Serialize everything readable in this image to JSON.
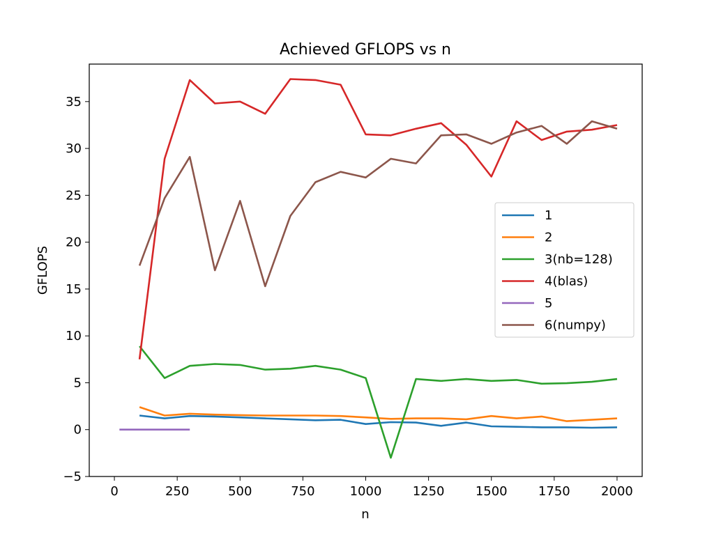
{
  "chart_data": {
    "type": "line",
    "title": "Achieved GFLOPS vs n",
    "xlabel": "n",
    "ylabel": "GFLOPS",
    "xlim": [
      -100,
      2100
    ],
    "ylim": [
      -5,
      39
    ],
    "xticks": [
      0,
      250,
      500,
      750,
      1000,
      1250,
      1500,
      1750,
      2000
    ],
    "xtick_labels": [
      "0",
      "250",
      "500",
      "750",
      "1000",
      "1250",
      "1500",
      "1750",
      "2000"
    ],
    "yticks": [
      -5,
      0,
      5,
      10,
      15,
      20,
      25,
      30,
      35
    ],
    "ytick_labels": [
      "−5",
      "0",
      "5",
      "10",
      "15",
      "20",
      "25",
      "30",
      "35"
    ],
    "grid": false,
    "legend_position": "center-right",
    "series": [
      {
        "name": "1",
        "color": "#1f77b4",
        "x": [
          100,
          200,
          300,
          400,
          500,
          600,
          700,
          800,
          900,
          1000,
          1100,
          1200,
          1300,
          1400,
          1500,
          1600,
          1700,
          1800,
          1900,
          2000
        ],
        "y": [
          1.5,
          1.2,
          1.45,
          1.4,
          1.3,
          1.2,
          1.1,
          1.0,
          1.05,
          0.6,
          0.8,
          0.75,
          0.4,
          0.75,
          0.35,
          0.3,
          0.25,
          0.25,
          0.2,
          0.25
        ]
      },
      {
        "name": "2",
        "color": "#ff7f0e",
        "x": [
          100,
          200,
          300,
          400,
          500,
          600,
          700,
          800,
          900,
          1000,
          1100,
          1200,
          1300,
          1400,
          1500,
          1600,
          1700,
          1800,
          1900,
          2000
        ],
        "y": [
          2.4,
          1.5,
          1.7,
          1.6,
          1.55,
          1.5,
          1.5,
          1.5,
          1.45,
          1.3,
          1.15,
          1.2,
          1.2,
          1.1,
          1.45,
          1.2,
          1.4,
          0.9,
          1.05,
          1.2
        ]
      },
      {
        "name": "3(nb=128)",
        "color": "#2ca02c",
        "x": [
          100,
          200,
          300,
          400,
          500,
          600,
          700,
          800,
          900,
          1000,
          1100,
          1200,
          1300,
          1400,
          1500,
          1600,
          1700,
          1800,
          1900,
          2000
        ],
        "y": [
          8.9,
          5.5,
          6.8,
          7.0,
          6.9,
          6.4,
          6.5,
          6.8,
          6.4,
          5.5,
          -3.0,
          5.4,
          5.2,
          5.4,
          5.2,
          5.3,
          4.9,
          4.95,
          5.1,
          5.4
        ]
      },
      {
        "name": "4(blas)",
        "color": "#d62728",
        "x": [
          100,
          200,
          300,
          400,
          500,
          600,
          700,
          800,
          900,
          1000,
          1100,
          1200,
          1300,
          1400,
          1500,
          1600,
          1700,
          1800,
          1900,
          2000
        ],
        "y": [
          7.5,
          28.9,
          37.3,
          34.8,
          35.0,
          33.7,
          37.4,
          37.3,
          36.8,
          31.5,
          31.4,
          32.1,
          32.7,
          30.4,
          27.0,
          32.9,
          30.9,
          31.8,
          32.0,
          32.5
        ]
      },
      {
        "name": "5",
        "color": "#9467bd",
        "x": [
          20,
          40,
          60,
          80,
          100,
          120,
          140,
          160,
          180,
          200,
          220,
          240,
          260,
          280,
          300
        ],
        "y": [
          0,
          0,
          0,
          0,
          0,
          0,
          0,
          0,
          0,
          0,
          0,
          0,
          0,
          0,
          0
        ]
      },
      {
        "name": "6(numpy)",
        "color": "#8c564b",
        "x": [
          100,
          200,
          300,
          400,
          500,
          600,
          700,
          800,
          900,
          1000,
          1100,
          1200,
          1300,
          1400,
          1500,
          1600,
          1700,
          1800,
          1900,
          2000
        ],
        "y": [
          17.5,
          24.7,
          29.1,
          17.0,
          24.4,
          15.3,
          22.8,
          26.4,
          27.5,
          26.9,
          28.9,
          28.4,
          31.4,
          31.5,
          30.5,
          31.7,
          32.4,
          30.5,
          32.9,
          32.1
        ]
      }
    ]
  }
}
